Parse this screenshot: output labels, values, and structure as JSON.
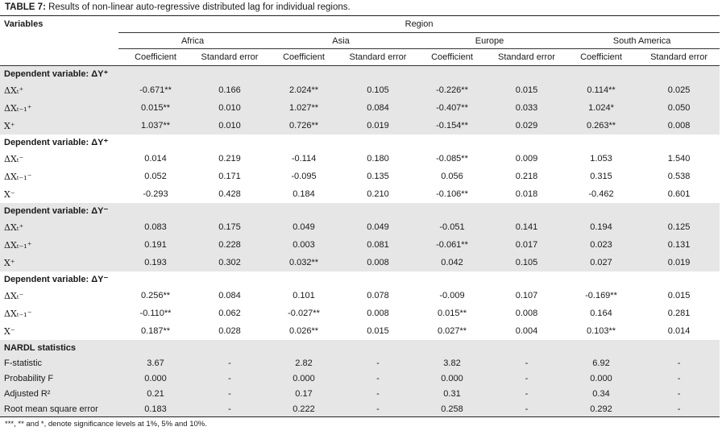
{
  "caption": {
    "label": "TABLE 7:",
    "text": " Results of non-linear auto-regressive distributed lag for individual regions."
  },
  "header": {
    "variables": "Variables",
    "region": "Region",
    "regions": [
      "Africa",
      "Asia",
      "Europe",
      "South America"
    ],
    "coef": "Coefficient",
    "se": "Standard error"
  },
  "sections": [
    {
      "title": "Dependent variable: ΔY⁺",
      "rows": [
        {
          "label": "ΔXₜ⁺",
          "values": [
            "-0.671**",
            "0.166",
            "2.024**",
            "0.105",
            "-0.226**",
            "0.015",
            "0.114**",
            "0.025"
          ]
        },
        {
          "label": "ΔXₜ₋₁⁺",
          "values": [
            "0.015**",
            "0.010",
            "1.027**",
            "0.084",
            "-0.407**",
            "0.033",
            "1.024*",
            "0.050"
          ]
        },
        {
          "label": "X⁺",
          "values": [
            "1.037**",
            "0.010",
            "0.726**",
            "0.019",
            "-0.154**",
            "0.029",
            "0.263**",
            "0.008"
          ]
        }
      ]
    },
    {
      "title": "Dependent variable: ΔY⁺",
      "rows": [
        {
          "label": "ΔXₜ⁻",
          "values": [
            "0.014",
            "0.219",
            "-0.114",
            "0.180",
            "-0.085**",
            "0.009",
            "1.053",
            "1.540"
          ]
        },
        {
          "label": "ΔXₜ₋₁⁻",
          "values": [
            "0.052",
            "0.171",
            "-0.095",
            "0.135",
            "0.056",
            "0.218",
            "0.315",
            "0.538"
          ]
        },
        {
          "label": "X⁻",
          "values": [
            "-0.293",
            "0.428",
            "0.184",
            "0.210",
            "-0.106**",
            "0.018",
            "-0.462",
            "0.601"
          ]
        }
      ]
    },
    {
      "title": "Dependent variable: ΔY⁻",
      "rows": [
        {
          "label": "ΔXₜ⁺",
          "values": [
            "0.083",
            "0.175",
            "0.049",
            "0.049",
            "-0.051",
            "0.141",
            "0.194",
            "0.125"
          ]
        },
        {
          "label": "ΔXₜ₋₁⁺",
          "values": [
            "0.191",
            "0.228",
            "0.003",
            "0.081",
            "-0.061**",
            "0.017",
            "0.023",
            "0.131"
          ]
        },
        {
          "label": "X⁺",
          "values": [
            "0.193",
            "0.302",
            "0.032**",
            "0.008",
            "0.042",
            "0.105",
            "0.027",
            "0.019"
          ]
        }
      ]
    },
    {
      "title": "Dependent variable: ΔY⁻",
      "rows": [
        {
          "label": "ΔXₜ⁻",
          "values": [
            "0.256**",
            "0.084",
            "0.101",
            "0.078",
            "-0.009",
            "0.107",
            "-0.169**",
            "0.015"
          ]
        },
        {
          "label": "ΔXₜ₋₁⁻",
          "values": [
            "-0.110**",
            "0.062",
            "-0.027**",
            "0.008",
            "0.015**",
            "0.008",
            "0.164",
            "0.281"
          ]
        },
        {
          "label": "X⁻",
          "values": [
            "0.187**",
            "0.028",
            "0.026**",
            "0.015",
            "0.027**",
            "0.004",
            "0.103**",
            "0.014"
          ]
        }
      ]
    }
  ],
  "stats": {
    "title": "NARDL statistics",
    "rows": [
      {
        "label": "F-statistic",
        "values": [
          "3.67",
          "-",
          "2.82",
          "-",
          "3.82",
          "-",
          "6.92",
          "-"
        ]
      },
      {
        "label": "Probability F",
        "values": [
          "0.000",
          "-",
          "0.000",
          "-",
          "0.000",
          "-",
          "0.000",
          "-"
        ]
      },
      {
        "label": "Adjusted R²",
        "values": [
          "0.21",
          "-",
          "0.17",
          "-",
          "0.31",
          "-",
          "0.34",
          "-"
        ]
      },
      {
        "label": "Root mean square error",
        "values": [
          "0.183",
          "-",
          "0.222",
          "-",
          "0.258",
          "-",
          "0.292",
          "-"
        ]
      }
    ]
  },
  "note": "***, ** and *, denote significance levels at 1%, 5% and 10%."
}
